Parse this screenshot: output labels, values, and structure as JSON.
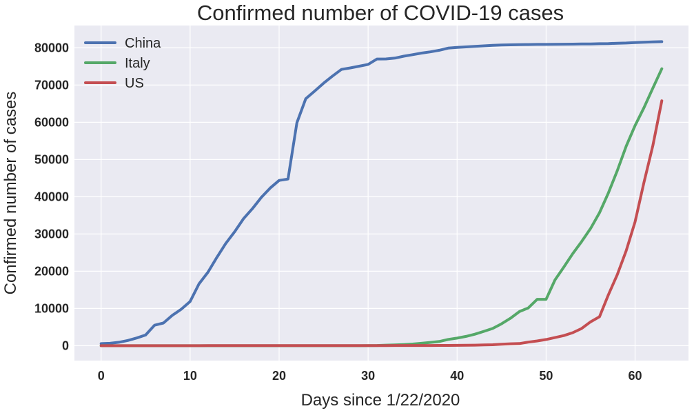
{
  "chart_data": {
    "type": "line",
    "title": "Confirmed number of COVID-19 cases",
    "xlabel": "Days since 1/22/2020",
    "ylabel": "Confirmed number of cases",
    "xlim": [
      -3,
      66
    ],
    "ylim": [
      -4000,
      86000
    ],
    "xticks": [
      0,
      10,
      20,
      30,
      40,
      50,
      60
    ],
    "yticks": [
      0,
      10000,
      20000,
      30000,
      40000,
      50000,
      60000,
      70000,
      80000
    ],
    "grid": true,
    "legend_position": "top-left",
    "background_color": "#eaeaf2",
    "grid_color": "#ffffff",
    "series": [
      {
        "name": "China",
        "color": "#4c72b0",
        "x": [
          0,
          1,
          2,
          3,
          4,
          5,
          6,
          7,
          8,
          9,
          10,
          11,
          12,
          13,
          14,
          15,
          16,
          17,
          18,
          19,
          20,
          21,
          22,
          23,
          24,
          25,
          26,
          27,
          28,
          29,
          30,
          31,
          32,
          33,
          34,
          35,
          36,
          37,
          38,
          39,
          40,
          41,
          42,
          43,
          44,
          45,
          46,
          47,
          48,
          49,
          50,
          51,
          52,
          53,
          54,
          55,
          56,
          57,
          58,
          59,
          60,
          61,
          62,
          63
        ],
        "values": [
          548,
          643,
          920,
          1406,
          2075,
          2877,
          5509,
          6087,
          8141,
          9802,
          11891,
          16630,
          19716,
          23707,
          27440,
          30587,
          34110,
          36814,
          39829,
          42354,
          44386,
          44759,
          59895,
          66358,
          68413,
          70513,
          72434,
          74211,
          74619,
          75077,
          75550,
          77001,
          77022,
          77241,
          77754,
          78166,
          78600,
          78928,
          79356,
          79932,
          80136,
          80261,
          80386,
          80537,
          80690,
          80770,
          80823,
          80860,
          80887,
          80921,
          80932,
          80945,
          80977,
          81003,
          81033,
          81058,
          81102,
          81156,
          81250,
          81305,
          81435,
          81498,
          81591,
          81661
        ]
      },
      {
        "name": "Italy",
        "color": "#55a868",
        "x": [
          0,
          1,
          2,
          3,
          4,
          5,
          6,
          7,
          8,
          9,
          10,
          11,
          12,
          13,
          14,
          15,
          16,
          17,
          18,
          19,
          20,
          21,
          22,
          23,
          24,
          25,
          26,
          27,
          28,
          29,
          30,
          31,
          32,
          33,
          34,
          35,
          36,
          37,
          38,
          39,
          40,
          41,
          42,
          43,
          44,
          45,
          46,
          47,
          48,
          49,
          50,
          51,
          52,
          53,
          54,
          55,
          56,
          57,
          58,
          59,
          60,
          61,
          62,
          63
        ],
        "values": [
          0,
          0,
          0,
          0,
          0,
          0,
          0,
          0,
          0,
          2,
          2,
          2,
          2,
          2,
          3,
          3,
          3,
          3,
          3,
          3,
          3,
          3,
          3,
          3,
          3,
          3,
          3,
          3,
          3,
          3,
          20,
          62,
          155,
          229,
          322,
          453,
          655,
          888,
          1128,
          1694,
          2036,
          2502,
          3089,
          3858,
          4636,
          5883,
          7375,
          9172,
          10149,
          12462,
          12462,
          17660,
          21157,
          24747,
          27980,
          31506,
          35713,
          41035,
          47021,
          53578,
          59138,
          63927,
          69176,
          74386
        ]
      },
      {
        "name": "US",
        "color": "#c44e52",
        "x": [
          0,
          1,
          2,
          3,
          4,
          5,
          6,
          7,
          8,
          9,
          10,
          11,
          12,
          13,
          14,
          15,
          16,
          17,
          18,
          19,
          20,
          21,
          22,
          23,
          24,
          25,
          26,
          27,
          28,
          29,
          30,
          31,
          32,
          33,
          34,
          35,
          36,
          37,
          38,
          39,
          40,
          41,
          42,
          43,
          44,
          45,
          46,
          47,
          48,
          49,
          50,
          51,
          52,
          53,
          54,
          55,
          56,
          57,
          58,
          59,
          60,
          61,
          62,
          63
        ],
        "values": [
          1,
          1,
          2,
          2,
          5,
          5,
          5,
          5,
          5,
          7,
          8,
          8,
          11,
          11,
          11,
          11,
          11,
          11,
          11,
          11,
          12,
          12,
          13,
          13,
          13,
          13,
          13,
          13,
          13,
          13,
          15,
          15,
          15,
          51,
          51,
          57,
          58,
          60,
          68,
          74,
          98,
          118,
          149,
          217,
          262,
          402,
          518,
          583,
          959,
          1281,
          1663,
          2179,
          2727,
          3499,
          4632,
          6421,
          7786,
          13680,
          19101,
          25493,
          33276,
          43847,
          53740,
          65778
        ]
      }
    ]
  }
}
